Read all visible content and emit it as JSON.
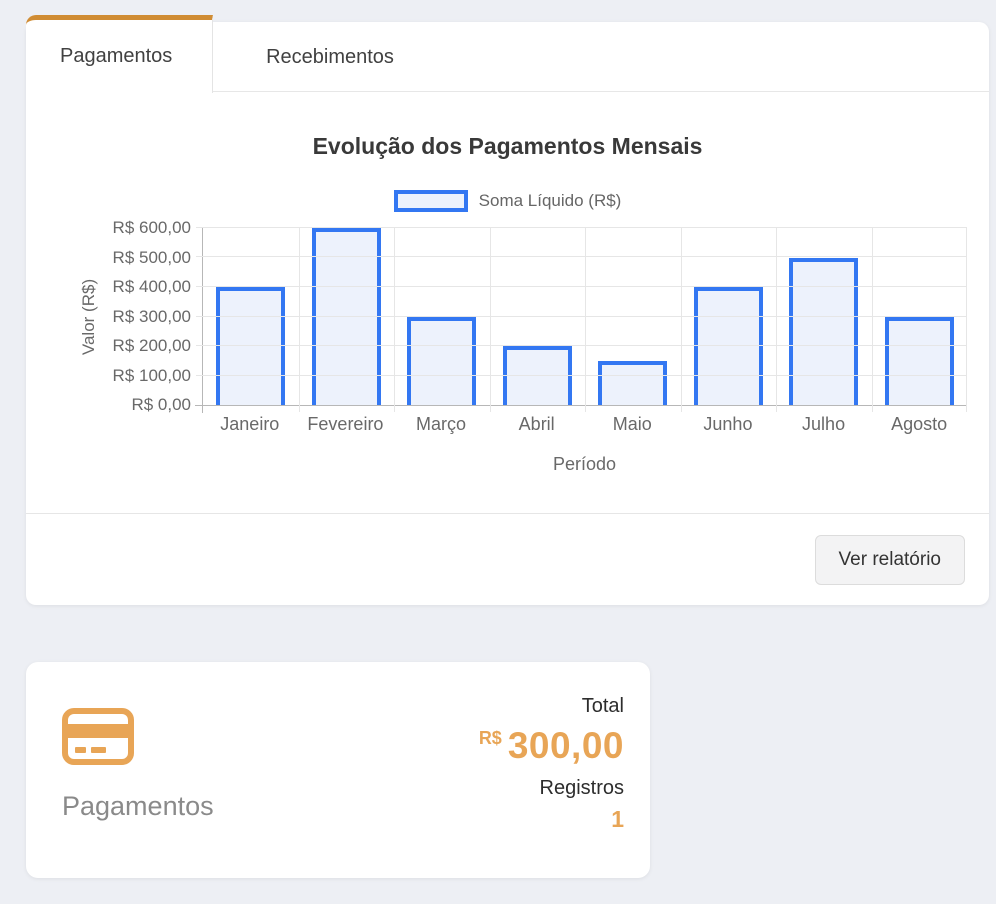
{
  "colors": {
    "accent_orange": "#e8a556",
    "tab_accent_orange": "#d08c33",
    "bar_border_blue": "#3377f2",
    "bar_fill_blue": "#edf2fc",
    "page_background": "#edeff4"
  },
  "tabs": [
    {
      "label": "Pagamentos",
      "active": true
    },
    {
      "label": "Recebimentos",
      "active": false
    }
  ],
  "chart_data": {
    "type": "bar",
    "title": "Evolução dos Pagamentos Mensais",
    "legend": {
      "label": "Soma Líquido (R$)",
      "position": "top"
    },
    "categories": [
      "Janeiro",
      "Fevereiro",
      "Março",
      "Abril",
      "Maio",
      "Junho",
      "Julho",
      "Agosto"
    ],
    "series": [
      {
        "name": "Soma Líquido (R$)",
        "values": [
          400,
          600,
          300,
          200,
          150,
          400,
          500,
          300
        ]
      }
    ],
    "xlabel": "Período",
    "ylabel": "Valor (R$)",
    "ylim": [
      0,
      600
    ],
    "grid": true,
    "y_ticks": [
      {
        "value": 600,
        "label": "R$ 600,00"
      },
      {
        "value": 500,
        "label": "R$ 500,00"
      },
      {
        "value": 400,
        "label": "R$ 400,00"
      },
      {
        "value": 300,
        "label": "R$ 300,00"
      },
      {
        "value": 200,
        "label": "R$ 200,00"
      },
      {
        "value": 100,
        "label": "R$ 100,00"
      },
      {
        "value": 0,
        "label": "R$ 0,00"
      }
    ]
  },
  "chart_card": {
    "button_label": "Ver relatório"
  },
  "summary_card": {
    "icon": "credit-card-icon",
    "label": "Pagamentos",
    "total_label": "Total",
    "currency_symbol": "R$",
    "total_value": "300,00",
    "registros_label": "Registros",
    "registros_value": "1"
  }
}
